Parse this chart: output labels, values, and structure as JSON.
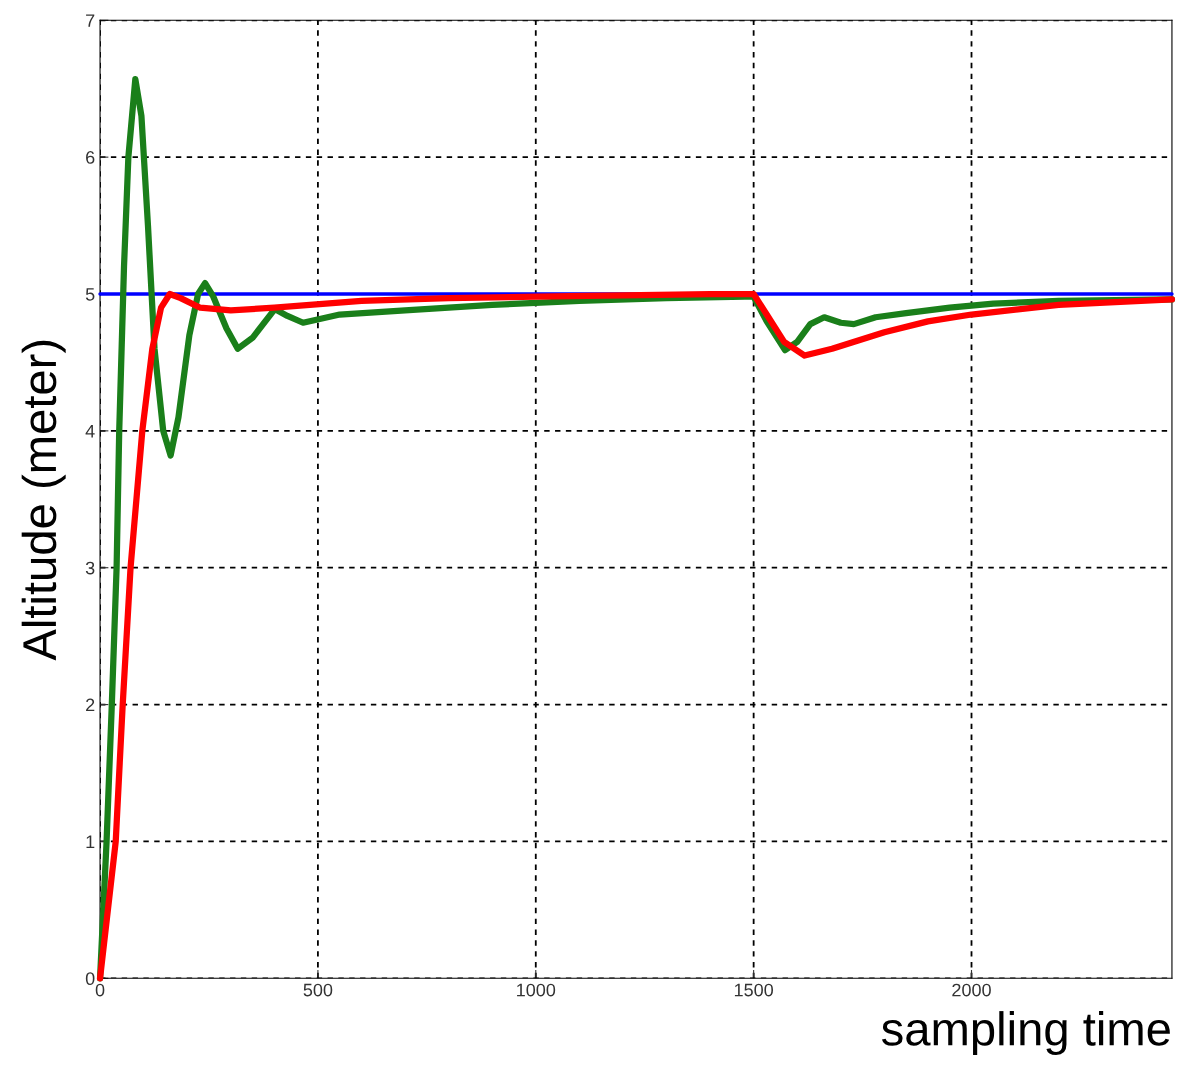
{
  "chart_data": {
    "type": "line",
    "xlabel": "sampling time",
    "ylabel": "Altitude (meter)",
    "xlim": [
      0,
      2460
    ],
    "ylim": [
      0,
      7
    ],
    "xticks": [
      0,
      500,
      1000,
      1500,
      2000
    ],
    "yticks": [
      0,
      1,
      2,
      3,
      4,
      5,
      6,
      7
    ],
    "grid": true,
    "line_style": "solid",
    "marker": "none",
    "series": [
      {
        "color": "#0000ff",
        "x": [
          0,
          2460
        ],
        "values": [
          5,
          5
        ]
      },
      {
        "color": "#1a7f1a",
        "x": [
          0,
          15,
          27,
          38,
          44,
          55,
          65,
          81,
          95,
          110,
          125,
          145,
          162,
          180,
          205,
          225,
          241,
          260,
          290,
          316,
          350,
          401,
          430,
          466,
          550,
          700,
          900,
          1100,
          1300,
          1480,
          1500,
          1530,
          1572,
          1600,
          1630,
          1662,
          1700,
          1730,
          1780,
          1850,
          1950,
          2050,
          2200,
          2460
        ],
        "values": [
          0,
          1,
          2,
          3,
          4,
          5.2,
          6,
          6.57,
          6.3,
          5.5,
          4.6,
          4.0,
          3.82,
          4.1,
          4.7,
          5.0,
          5.08,
          4.98,
          4.75,
          4.6,
          4.68,
          4.89,
          4.84,
          4.79,
          4.85,
          4.88,
          4.92,
          4.95,
          4.97,
          4.98,
          4.98,
          4.8,
          4.59,
          4.65,
          4.78,
          4.83,
          4.79,
          4.78,
          4.83,
          4.86,
          4.9,
          4.93,
          4.95,
          4.96
        ]
      },
      {
        "color": "#ff0000",
        "x": [
          0,
          36,
          52,
          70,
          97,
          120,
          140,
          160,
          185,
          230,
          300,
          400,
          600,
          800,
          1000,
          1400,
          1500,
          1530,
          1570,
          1617,
          1680,
          1800,
          1900,
          2000,
          2200,
          2460
        ],
        "values": [
          0,
          1,
          2,
          3,
          4,
          4.6,
          4.9,
          5.0,
          4.97,
          4.9,
          4.88,
          4.9,
          4.95,
          4.97,
          4.98,
          5.0,
          5.0,
          4.85,
          4.65,
          4.55,
          4.6,
          4.72,
          4.8,
          4.85,
          4.92,
          4.96
        ]
      }
    ]
  }
}
